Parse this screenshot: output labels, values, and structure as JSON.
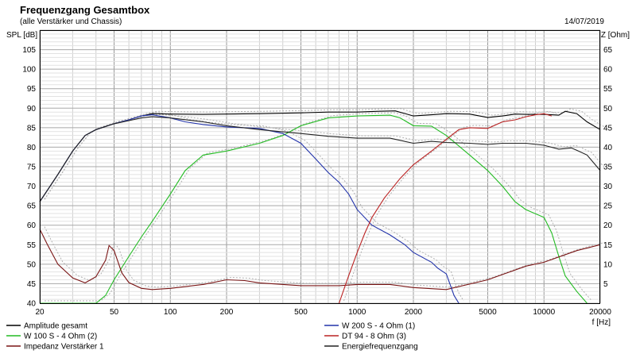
{
  "header": {
    "title": "Frequenzgang Gesamtbox",
    "subtitle": "(alle Verstärker und Chassis)",
    "date": "14/07/2019"
  },
  "chart_data": {
    "type": "line",
    "title": "Frequenzgang Gesamtbox",
    "subtitle": "(alle Verstärker und Chassis)",
    "xlabel": "f [Hz]",
    "ylabel": "SPL [dB]",
    "ylabel_right": "Z [Ohm]",
    "x_scale": "log",
    "xlim": [
      20,
      20000
    ],
    "ylim": [
      40,
      110
    ],
    "ylim_right": [
      0,
      70
    ],
    "grid": true,
    "legend_position": "bottom",
    "x_ticks": [
      "20",
      "50",
      "100",
      "200",
      "500",
      "1000",
      "2000",
      "5000",
      "10000",
      "20000"
    ],
    "y_ticks": [
      "40",
      "45",
      "50",
      "55",
      "60",
      "65",
      "70",
      "75",
      "80",
      "85",
      "90",
      "95",
      "100",
      "105"
    ],
    "y_ticks_right": [
      "5",
      "10",
      "15",
      "20",
      "25",
      "30",
      "35",
      "40",
      "45",
      "50",
      "55",
      "60",
      "65"
    ],
    "series": [
      {
        "name": "Amplitude gesamt",
        "color": "#000000",
        "axis": "left",
        "x": [
          20,
          25,
          30,
          35,
          40,
          50,
          60,
          70,
          80,
          100,
          150,
          200,
          300,
          500,
          700,
          1000,
          1300,
          1600,
          2000,
          2500,
          3000,
          4000,
          5000,
          6000,
          7000,
          8000,
          10000,
          12000,
          13000,
          15000,
          17000,
          20000
        ],
        "y": [
          66,
          73,
          79,
          83,
          84.5,
          86,
          87,
          88,
          88.6,
          88.5,
          88.4,
          88.5,
          88.6,
          88.8,
          89,
          89,
          89.2,
          89.3,
          88,
          88.3,
          88.6,
          88.5,
          87.6,
          88,
          88.5,
          88.4,
          88.4,
          88.2,
          89.2,
          88.6,
          86.5,
          84.5
        ]
      },
      {
        "name": "W 100 S - 4 Ohm (2)",
        "color": "#22bb22",
        "axis": "left",
        "x": [
          20,
          40,
          45,
          50,
          60,
          70,
          80,
          100,
          120,
          150,
          200,
          300,
          400,
          500,
          700,
          1000,
          1500,
          1700,
          2000,
          2500,
          3000,
          4000,
          5000,
          6000,
          7000,
          8000,
          10000,
          11000,
          12000,
          13000,
          15000,
          17000
        ],
        "y": [
          40,
          40,
          42,
          46,
          52,
          57,
          61,
          68,
          74,
          78,
          79,
          81,
          83,
          85.5,
          87.5,
          88,
          88.2,
          87.5,
          85.5,
          85.4,
          83,
          78,
          74,
          70,
          66,
          64,
          62,
          58,
          52,
          47,
          43,
          40
        ]
      },
      {
        "name": "Impedanz Verstärker 1",
        "color": "#7a1515",
        "axis": "right",
        "x": [
          20,
          22,
          25,
          30,
          35,
          40,
          45,
          47,
          50,
          55,
          60,
          70,
          80,
          100,
          150,
          200,
          250,
          300,
          500,
          800,
          1000,
          1500,
          2000,
          3000,
          5000,
          8000,
          10000,
          15000,
          20000
        ],
        "y": [
          19,
          15,
          10,
          6.5,
          5.2,
          6.8,
          11,
          14.8,
          13.5,
          7.8,
          5.3,
          3.8,
          3.5,
          3.8,
          4.8,
          6,
          5.8,
          5.2,
          4.5,
          4.5,
          4.8,
          4.8,
          4,
          3.5,
          6,
          9.5,
          10.5,
          13.5,
          15
        ]
      },
      {
        "name": "W 200 S - 4 Ohm (1)",
        "color": "#2233aa",
        "axis": "left",
        "x": [
          20,
          25,
          30,
          35,
          40,
          50,
          60,
          70,
          80,
          100,
          120,
          150,
          200,
          300,
          400,
          500,
          600,
          700,
          800,
          900,
          1000,
          1200,
          1500,
          1800,
          2000,
          2500,
          2700,
          3000,
          3300,
          3500
        ],
        "y": [
          66,
          73,
          79,
          83,
          84.5,
          86,
          87,
          88,
          88.3,
          87.5,
          86.5,
          85.8,
          85.2,
          84.8,
          83.5,
          81,
          77,
          73.5,
          71,
          68,
          64,
          60,
          57.5,
          55,
          53,
          50.5,
          49,
          47.5,
          42,
          40
        ]
      },
      {
        "name": "DT 94 - 8 Ohm (3)",
        "color": "#bb2222",
        "axis": "left",
        "x": [
          800,
          900,
          1000,
          1100,
          1200,
          1400,
          1700,
          2000,
          2500,
          3000,
          3500,
          4000,
          5000,
          6000,
          7000,
          8000,
          9000,
          10000,
          11000
        ],
        "y": [
          40,
          47,
          53,
          58,
          62,
          67,
          72,
          75.5,
          79,
          82,
          84.5,
          85,
          84.8,
          86.5,
          87,
          87.8,
          88.3,
          88.6,
          88
        ]
      },
      {
        "name": "Energiefrequenzgang",
        "color": "#222222",
        "axis": "left",
        "x": [
          20,
          25,
          30,
          35,
          40,
          50,
          60,
          70,
          80,
          100,
          150,
          200,
          300,
          500,
          700,
          1000,
          1500,
          2000,
          2500,
          3000,
          4000,
          5000,
          6000,
          8000,
          10000,
          12000,
          14000,
          15000,
          17000,
          20000
        ],
        "y": [
          66,
          73,
          79,
          83,
          84.5,
          86,
          86.8,
          87.5,
          87.8,
          87.5,
          86.5,
          85.5,
          84.5,
          83.5,
          82.8,
          82.3,
          82.3,
          81,
          81.5,
          81.2,
          81,
          80.7,
          81,
          81,
          80.5,
          79.5,
          79.8,
          79.2,
          78,
          74
        ]
      }
    ]
  },
  "legend_items": [
    {
      "label": "Amplitude gesamt",
      "color": "#000000"
    },
    {
      "label": "W 200 S - 4 Ohm (1)",
      "color": "#2233aa"
    },
    {
      "label": "W 100 S - 4 Ohm (2)",
      "color": "#22bb22"
    },
    {
      "label": "DT 94 - 8 Ohm (3)",
      "color": "#bb2222"
    },
    {
      "label": "Impedanz Verstärker 1",
      "color": "#7a1515"
    },
    {
      "label": "Energiefrequenzgang",
      "color": "#222222"
    }
  ]
}
